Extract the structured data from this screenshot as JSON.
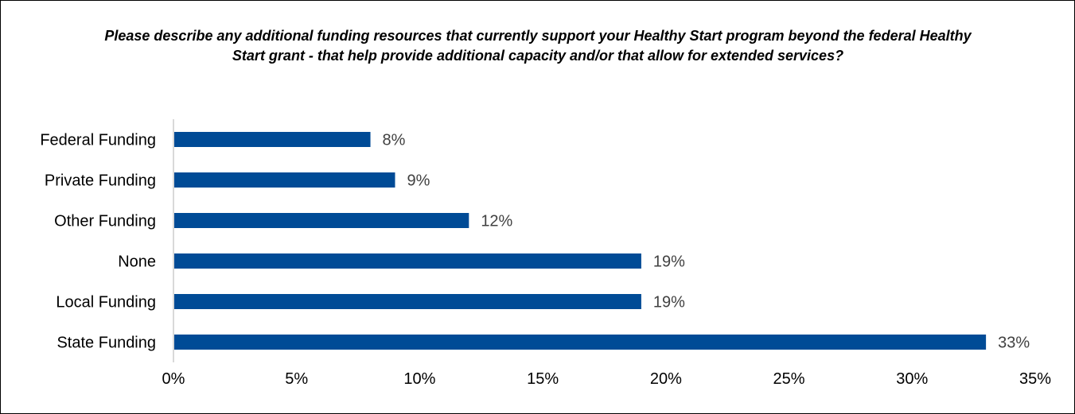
{
  "chart_data": {
    "type": "bar",
    "orientation": "horizontal",
    "title": "Please describe any additional funding resources that currently support your Healthy Start program beyond the federal Healthy Start grant - that help provide additional capacity and/or that allow for extended services?",
    "categories": [
      "Federal Funding",
      "Private Funding",
      "Other Funding",
      "None",
      "Local Funding",
      "State Funding"
    ],
    "values": [
      8,
      9,
      12,
      19,
      19,
      33
    ],
    "value_labels": [
      "8%",
      "9%",
      "12%",
      "19%",
      "19%",
      "33%"
    ],
    "xlim": [
      0,
      35
    ],
    "xticks": [
      0,
      5,
      10,
      15,
      20,
      25,
      30,
      35
    ],
    "xtick_labels": [
      "0%",
      "5%",
      "10%",
      "15%",
      "20%",
      "25%",
      "30%",
      "35%"
    ],
    "xlabel": "",
    "ylabel": "",
    "grid": false,
    "legend": "none",
    "bar_color": "#004b96",
    "axis_color": "#d9d9d9",
    "data_label_color": "#404040"
  }
}
